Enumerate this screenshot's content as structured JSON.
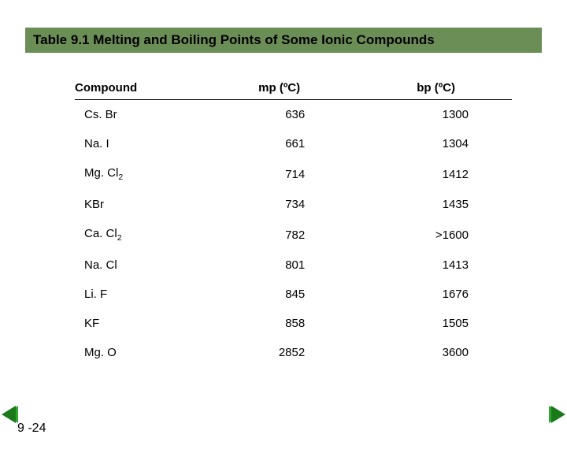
{
  "title": "Table 9.1  Melting and Boiling Points of Some Ionic Compounds",
  "columns": {
    "compound": "Compound",
    "mp": "mp (ºC)",
    "bp": "bp (ºC)"
  },
  "rows": [
    {
      "compound": "Cs. Br",
      "mp": "636",
      "bp": "1300"
    },
    {
      "compound": "Na. I",
      "mp": "661",
      "bp": "1304"
    },
    {
      "compound": "Mg. Cl",
      "sub": "2",
      "mp": "714",
      "bp": "1412"
    },
    {
      "compound": "KBr",
      "mp": "734",
      "bp": "1435"
    },
    {
      "compound": "Ca. Cl",
      "sub": "2",
      "mp": "782",
      "bp": ">1600"
    },
    {
      "compound": "Na. Cl",
      "mp": "801",
      "bp": "1413"
    },
    {
      "compound": "Li. F",
      "mp": "845",
      "bp": "1676"
    },
    {
      "compound": "KF",
      "mp": "858",
      "bp": "1505"
    },
    {
      "compound": "Mg. O",
      "mp": "2852",
      "bp": "3600"
    }
  ],
  "pageNumber": "9 -24",
  "colors": {
    "titleBg": "#6b8e56",
    "arrow": "#1a7a1a"
  }
}
